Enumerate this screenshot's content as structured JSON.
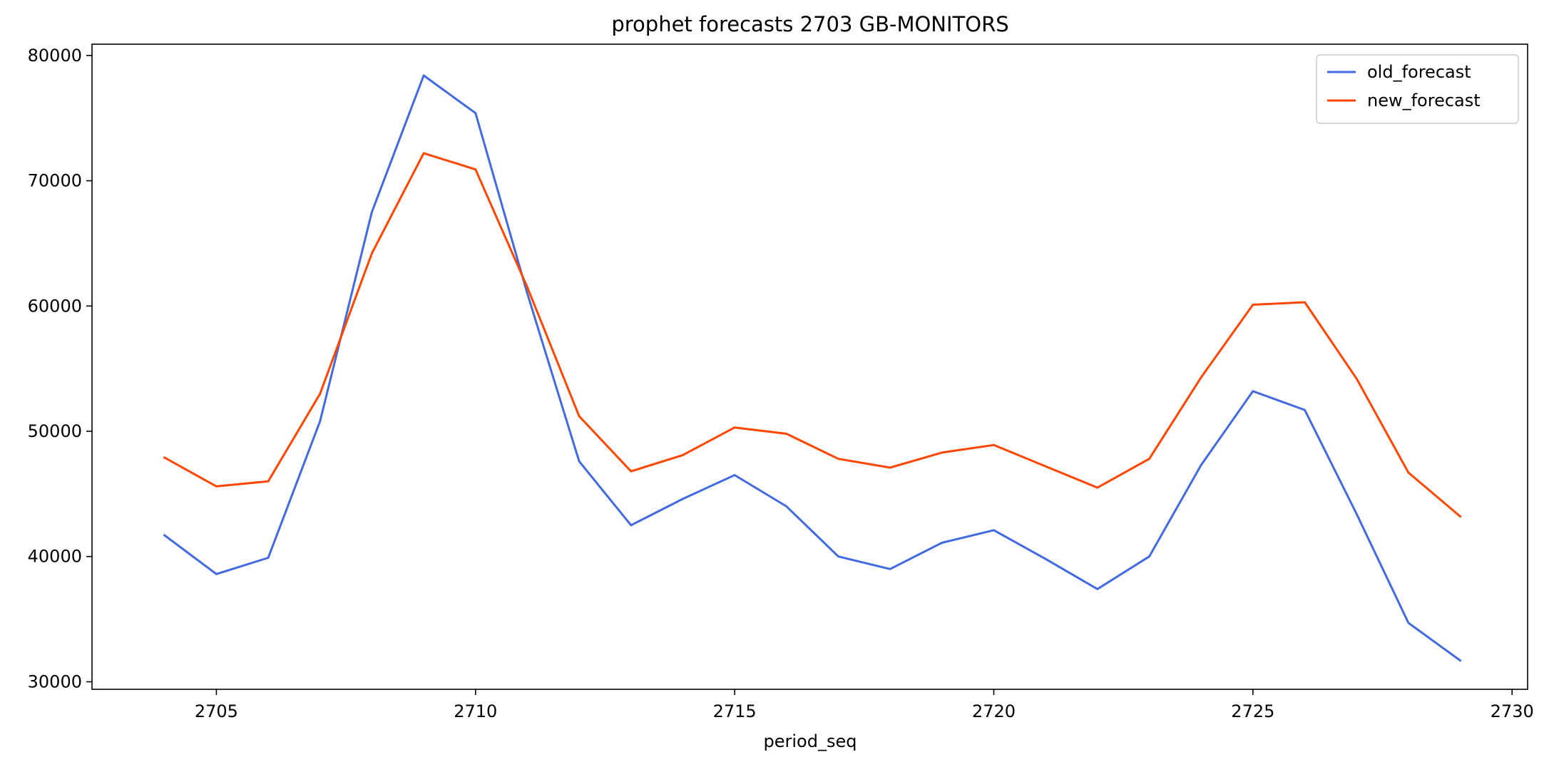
{
  "chart_data": {
    "type": "line",
    "title": "prophet forecasts 2703 GB-MONITORS",
    "xlabel": "period_seq",
    "ylabel": "",
    "x": [
      2704,
      2705,
      2706,
      2707,
      2708,
      2709,
      2710,
      2711,
      2712,
      2713,
      2714,
      2715,
      2716,
      2717,
      2718,
      2719,
      2720,
      2721,
      2722,
      2723,
      2724,
      2725,
      2726,
      2727,
      2728,
      2729
    ],
    "xlim": [
      2702.6,
      2730.3
    ],
    "ylim": [
      29400,
      80900
    ],
    "xticks": [
      2705,
      2710,
      2715,
      2720,
      2725,
      2730
    ],
    "yticks": [
      30000,
      40000,
      50000,
      60000,
      70000,
      80000
    ],
    "grid": false,
    "legend": "top-right",
    "series": [
      {
        "name": "old_forecast",
        "color": "#4169e1",
        "values": [
          41700,
          38600,
          39900,
          50800,
          67500,
          78400,
          75400,
          61000,
          47600,
          42500,
          44600,
          46500,
          44000,
          40000,
          39000,
          41100,
          42100,
          39800,
          37400,
          40000,
          47300,
          53200,
          51700,
          43400,
          34700,
          31700
        ]
      },
      {
        "name": "new_forecast",
        "color": "#ff4500",
        "values": [
          47900,
          45600,
          46000,
          53000,
          64200,
          72200,
          70900,
          61500,
          51200,
          46800,
          48100,
          50300,
          49800,
          47800,
          47100,
          48300,
          48900,
          47200,
          45500,
          47800,
          54300,
          60100,
          60300,
          54200,
          46700,
          43200
        ]
      }
    ]
  }
}
